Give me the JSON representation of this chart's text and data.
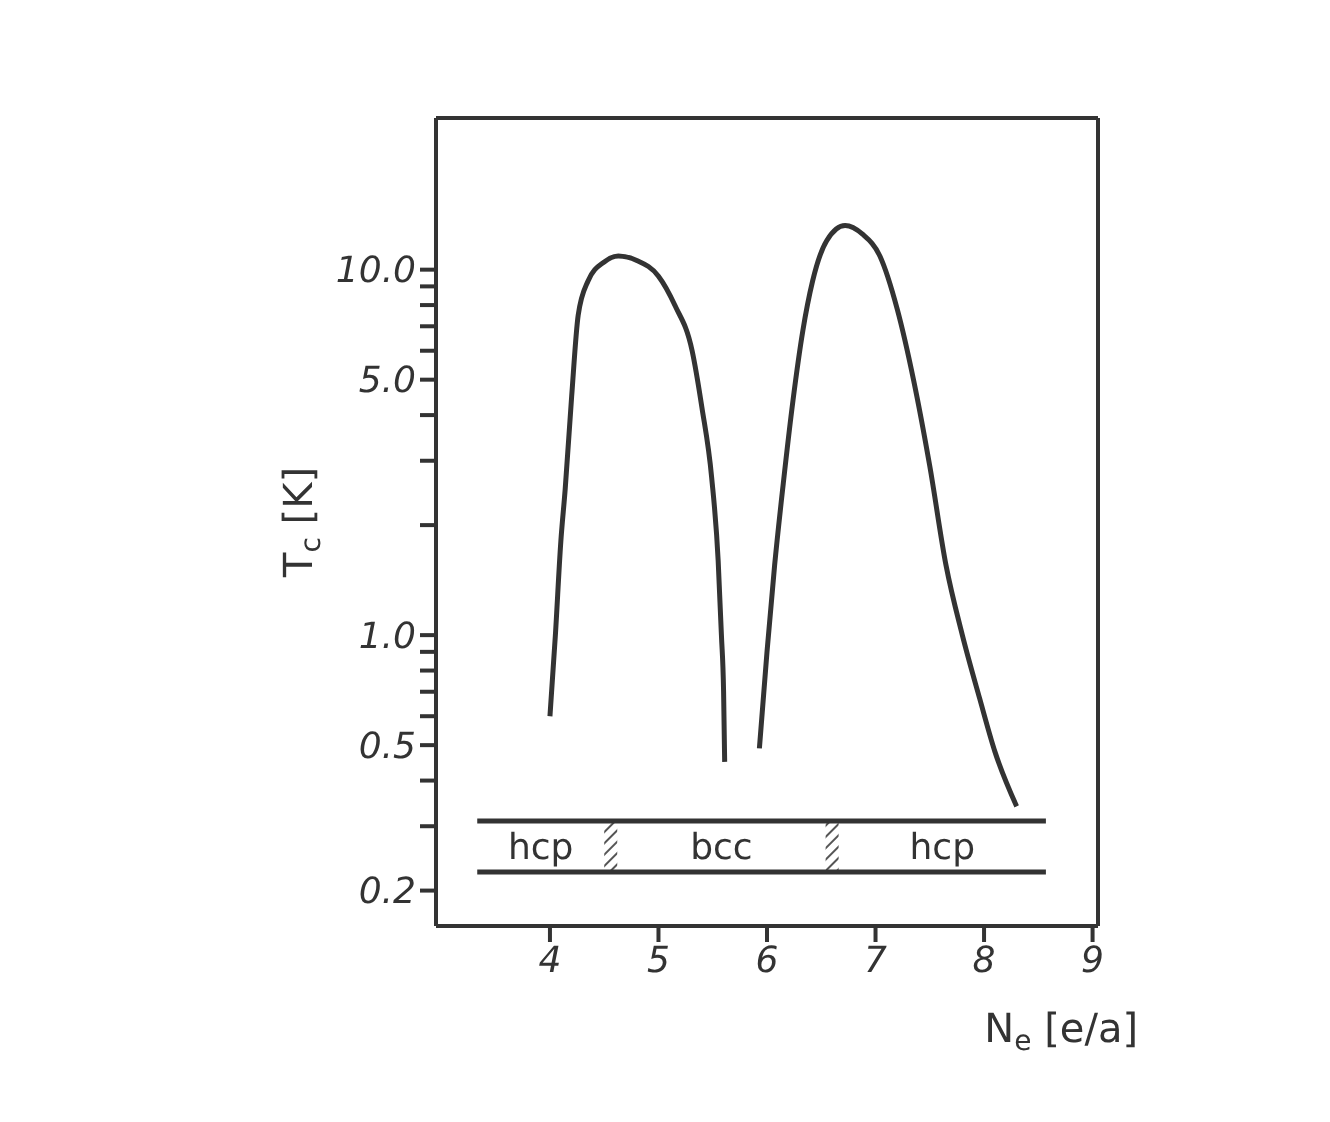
{
  "chart_data": {
    "type": "line",
    "xlabel": "N$_{e}$ [e/a]",
    "ylabel": "T$_{c}$ [K]",
    "log": "y",
    "marker": "none",
    "line_style": "solid",
    "xlim": [
      2.95,
      9.05
    ],
    "xticks": [
      4,
      5,
      6,
      7,
      8,
      9
    ],
    "ylim": [
      0.16,
      26
    ],
    "yticks": [
      0.2,
      {
        "value": 0.3,
        "label": null
      },
      {
        "value": 0.4,
        "label": null
      },
      0.5,
      {
        "value": 0.6,
        "label": null
      },
      {
        "value": 0.7,
        "label": null
      },
      {
        "value": 0.8,
        "label": null
      },
      {
        "value": 0.9,
        "label": null
      },
      {
        "value": 1,
        "label": "1.0"
      },
      {
        "value": 2,
        "label": null
      },
      {
        "value": 3,
        "label": null
      },
      {
        "value": 4,
        "label": null
      },
      {
        "value": 5,
        "label": "5.0"
      },
      {
        "value": 6,
        "label": null
      },
      {
        "value": 7,
        "label": null
      },
      {
        "value": 8,
        "label": null
      },
      {
        "value": 9,
        "label": null
      },
      {
        "value": 10,
        "label": "10.0"
      }
    ],
    "series": [
      {
        "color": "#333333",
        "x": [
          4.0,
          4.05,
          4.1,
          4.14,
          4.2,
          4.26,
          4.35,
          4.5,
          4.63,
          4.8,
          5.0,
          5.15,
          5.31,
          5.4,
          5.49,
          5.55,
          5.58,
          5.6,
          5.61
        ],
        "values": [
          0.6,
          1.0,
          1.8,
          2.5,
          4.5,
          7.5,
          9.3,
          10.5,
          10.9,
          10.6,
          9.6,
          8.0,
          6.0,
          4.2,
          2.7,
          1.6,
          1.0,
          0.7,
          0.45
        ]
      },
      {
        "color": "#333333",
        "x": [
          5.93,
          6.0,
          6.07,
          6.15,
          6.24,
          6.33,
          6.42,
          6.55,
          6.72,
          6.88,
          7.04,
          7.2,
          7.35,
          7.5,
          7.65,
          7.8,
          7.96,
          8.1,
          8.3
        ],
        "values": [
          0.49,
          0.9,
          1.55,
          2.6,
          4.4,
          6.8,
          9.3,
          12.0,
          13.2,
          12.5,
          10.9,
          7.8,
          5.0,
          2.9,
          1.55,
          1.0,
          0.67,
          0.48,
          0.34
        ]
      },
      {
        "color": "#333333",
        "x": [
          3.33,
          8.57
        ],
        "values": [
          0.31,
          0.31
        ]
      },
      {
        "color": "#333333",
        "x": [
          3.33,
          8.57
        ],
        "values": [
          0.225,
          0.225
        ]
      }
    ],
    "bands": [
      {
        "axis": "x",
        "from": 4.5,
        "to": 4.62,
        "color": "#555555"
      },
      {
        "axis": "x",
        "from": 6.54,
        "to": 6.66,
        "color": "#555555"
      }
    ],
    "annotations": [
      "hcp",
      "bcc",
      "hcp"
    ]
  }
}
